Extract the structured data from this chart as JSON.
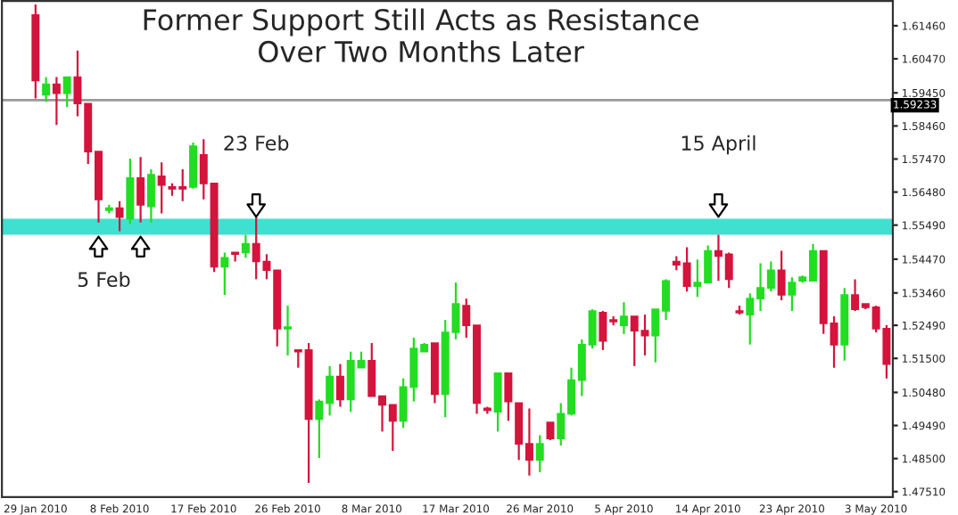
{
  "chart_data": {
    "type": "candlestick",
    "title": "Former Support Still Acts as Resistance\nOver Two Months Later",
    "categories": [
      "29 Jan 2010",
      null,
      null,
      null,
      null,
      null,
      null,
      null,
      "8 Feb 2010",
      null,
      null,
      null,
      null,
      null,
      null,
      null,
      "17 Feb 2010",
      null,
      null,
      null,
      null,
      null,
      null,
      null,
      "26 Feb 2010",
      null,
      null,
      null,
      null,
      null,
      null,
      null,
      "8 Mar 2010",
      null,
      null,
      null,
      null,
      null,
      null,
      null,
      "17 Mar 2010",
      null,
      null,
      null,
      null,
      null,
      null,
      null,
      "26 Mar 2010",
      null,
      null,
      null,
      null,
      null,
      null,
      null,
      "5 Apr 2010",
      null,
      null,
      null,
      null,
      null,
      null,
      null,
      "14 Apr 2010",
      null,
      null,
      null,
      null,
      null,
      null,
      null,
      "23 Apr 2010",
      null,
      null,
      null,
      null,
      null,
      null,
      null,
      "3 May 2010",
      null
    ],
    "ohlc": [
      [
        1.6178,
        1.621,
        1.5928,
        1.5982
      ],
      [
        1.5939,
        1.5992,
        1.5918,
        1.5971
      ],
      [
        1.5971,
        1.5992,
        1.5849,
        1.5944
      ],
      [
        1.5944,
        1.5992,
        1.5902,
        1.5992
      ],
      [
        1.5992,
        1.6072,
        1.5875,
        1.5913
      ],
      [
        1.5913,
        1.5913,
        1.5732,
        1.5769
      ],
      [
        1.5769,
        1.5769,
        1.5557,
        1.5626
      ],
      [
        1.5594,
        1.561,
        1.5584,
        1.56
      ],
      [
        1.56,
        1.5621,
        1.5531,
        1.5573
      ],
      [
        1.5568,
        1.5748,
        1.5552,
        1.569
      ],
      [
        1.569,
        1.5753,
        1.5557,
        1.561
      ],
      [
        1.5605,
        1.5716,
        1.5557,
        1.57
      ],
      [
        1.5695,
        1.5737,
        1.5584,
        1.5669
      ],
      [
        1.5663,
        1.5674,
        1.5637,
        1.5658
      ],
      [
        1.5663,
        1.5716,
        1.5621,
        1.5658
      ],
      [
        1.5663,
        1.5796,
        1.5658,
        1.5785
      ],
      [
        1.5759,
        1.5806,
        1.5626,
        1.5674
      ],
      [
        1.5674,
        1.5674,
        1.5409,
        1.5424
      ],
      [
        1.5424,
        1.5467,
        1.534,
        1.5451
      ],
      [
        1.5467,
        1.5467,
        1.544,
        1.5462
      ],
      [
        1.5467,
        1.552,
        1.5451,
        1.5493
      ],
      [
        1.5493,
        1.5573,
        1.5387,
        1.544
      ],
      [
        1.544,
        1.5462,
        1.5387,
        1.5414
      ],
      [
        1.5414,
        1.5414,
        1.5186,
        1.5239
      ],
      [
        1.5239,
        1.5308,
        1.5159,
        1.5244
      ],
      [
        1.5175,
        1.5175,
        1.5122,
        1.517
      ],
      [
        1.5175,
        1.5196,
        1.4777,
        1.4968
      ],
      [
        1.4968,
        1.5027,
        1.4852,
        1.5021
      ],
      [
        1.5016,
        1.5127,
        1.4979,
        1.5096
      ],
      [
        1.5096,
        1.5133,
        1.5005,
        1.5027
      ],
      [
        1.5027,
        1.517,
        1.499,
        1.5143
      ],
      [
        1.5122,
        1.517,
        1.5122,
        1.5143
      ],
      [
        1.5143,
        1.5196,
        1.5037,
        1.5037
      ],
      [
        1.5037,
        1.5037,
        1.4931,
        1.5011
      ],
      [
        1.5011,
        1.5011,
        1.4873,
        1.4963
      ],
      [
        1.4963,
        1.509,
        1.4942,
        1.5064
      ],
      [
        1.5064,
        1.5212,
        1.5021,
        1.518
      ],
      [
        1.517,
        1.5196,
        1.517,
        1.5191
      ],
      [
        1.5196,
        1.5196,
        1.5016,
        1.5043
      ],
      [
        1.5043,
        1.5265,
        1.4974,
        1.5228
      ],
      [
        1.5228,
        1.5377,
        1.5207,
        1.5313
      ],
      [
        1.5308,
        1.5329,
        1.5212,
        1.5249
      ],
      [
        1.5249,
        1.5249,
        1.4984,
        1.5016
      ],
      [
        1.5,
        1.5005,
        1.4984,
        1.4995
      ],
      [
        1.499,
        1.5106,
        1.4931,
        1.5106
      ],
      [
        1.5106,
        1.5106,
        1.4963,
        1.5021
      ],
      [
        1.5016,
        1.5016,
        1.4846,
        1.4894
      ],
      [
        1.4894,
        1.5,
        1.4799,
        1.4846
      ],
      [
        1.4846,
        1.492,
        1.4809,
        1.4894
      ],
      [
        1.4958,
        1.4958,
        1.4905,
        1.491
      ],
      [
        1.491,
        1.5016,
        1.4889,
        1.4984
      ],
      [
        1.4984,
        1.5122,
        1.4979,
        1.5085
      ],
      [
        1.5085,
        1.5207,
        1.5037,
        1.5191
      ],
      [
        1.5191,
        1.5297,
        1.518,
        1.5292
      ],
      [
        1.5287,
        1.5292,
        1.5175,
        1.5202
      ],
      [
        1.5265,
        1.5276,
        1.5249,
        1.526
      ],
      [
        1.5249,
        1.5318,
        1.5223,
        1.5276
      ],
      [
        1.5276,
        1.5276,
        1.5127,
        1.5233
      ],
      [
        1.5233,
        1.5281,
        1.5159,
        1.5218
      ],
      [
        1.5218,
        1.5297,
        1.5138,
        1.5297
      ],
      [
        1.5292,
        1.5387,
        1.5265,
        1.5382
      ],
      [
        1.544,
        1.5456,
        1.5414,
        1.543
      ],
      [
        1.5435,
        1.5483,
        1.535,
        1.5366
      ],
      [
        1.5366,
        1.5446,
        1.5334,
        1.5377
      ],
      [
        1.5377,
        1.5488,
        1.5377,
        1.5472
      ],
      [
        1.5472,
        1.552,
        1.5382,
        1.5456
      ],
      [
        1.5462,
        1.5467,
        1.5361,
        1.5387
      ],
      [
        1.5292,
        1.5308,
        1.5281,
        1.5287
      ],
      [
        1.5281,
        1.5345,
        1.5191,
        1.5329
      ],
      [
        1.5329,
        1.5435,
        1.5292,
        1.5361
      ],
      [
        1.5361,
        1.544,
        1.535,
        1.5414
      ],
      [
        1.5414,
        1.5472,
        1.5324,
        1.534
      ],
      [
        1.534,
        1.5393,
        1.5292,
        1.5377
      ],
      [
        1.5382,
        1.5398,
        1.5377,
        1.5393
      ],
      [
        1.5382,
        1.5493,
        1.5382,
        1.5472
      ],
      [
        1.5472,
        1.5472,
        1.5223,
        1.5255
      ],
      [
        1.5255,
        1.5276,
        1.5122,
        1.5191
      ],
      [
        1.5191,
        1.5361,
        1.5143,
        1.534
      ],
      [
        1.534,
        1.5387,
        1.5292,
        1.5297
      ],
      [
        1.5313,
        1.5313,
        1.5297,
        1.5303
      ],
      [
        1.5303,
        1.5308,
        1.5228,
        1.5239
      ],
      [
        1.5239,
        1.5249,
        1.509,
        1.5133
      ]
    ],
    "colors": [
      "#d4143c",
      "#22dd22",
      "#d4143c",
      "#22dd22",
      "#d4143c",
      "#d4143c",
      "#d4143c",
      "#22dd22",
      "#d4143c",
      "#22dd22",
      "#d4143c",
      "#22dd22",
      "#d4143c",
      "#d4143c",
      "#d4143c",
      "#22dd22",
      "#d4143c",
      "#d4143c",
      "#22dd22",
      "#d4143c",
      "#22dd22",
      "#d4143c",
      "#d4143c",
      "#d4143c",
      "#22dd22",
      "#d4143c",
      "#d4143c",
      "#22dd22",
      "#22dd22",
      "#d4143c",
      "#22dd22",
      "#22dd22",
      "#d4143c",
      "#d4143c",
      "#d4143c",
      "#22dd22",
      "#22dd22",
      "#22dd22",
      "#d4143c",
      "#22dd22",
      "#22dd22",
      "#d4143c",
      "#d4143c",
      "#d4143c",
      "#22dd22",
      "#d4143c",
      "#d4143c",
      "#d4143c",
      "#22dd22",
      "#d4143c",
      "#22dd22",
      "#22dd22",
      "#22dd22",
      "#22dd22",
      "#d4143c",
      "#d4143c",
      "#22dd22",
      "#d4143c",
      "#d4143c",
      "#22dd22",
      "#22dd22",
      "#d4143c",
      "#d4143c",
      "#22dd22",
      "#22dd22",
      "#d4143c",
      "#d4143c",
      "#d4143c",
      "#22dd22",
      "#22dd22",
      "#22dd22",
      "#d4143c",
      "#22dd22",
      "#22dd22",
      "#22dd22",
      "#d4143c",
      "#d4143c",
      "#22dd22",
      "#d4143c",
      "#d4143c",
      "#d4143c",
      "#d4143c"
    ],
    "ylim": [
      1.4735,
      1.622
    ],
    "yticks": [
      {
        "value": 1.6146,
        "label": "1.61460"
      },
      {
        "value": 1.6047,
        "label": "1.60470"
      },
      {
        "value": 1.5945,
        "label": "1.59450"
      },
      {
        "value": 1.5846,
        "label": "1.58460"
      },
      {
        "value": 1.5747,
        "label": "1.57470"
      },
      {
        "value": 1.5648,
        "label": "1.56480"
      },
      {
        "value": 1.5549,
        "label": "1.55490"
      },
      {
        "value": 1.5447,
        "label": "1.54470"
      },
      {
        "value": 1.5346,
        "label": "1.53460"
      },
      {
        "value": 1.5249,
        "label": "1.52490"
      },
      {
        "value": 1.515,
        "label": "1.51500"
      },
      {
        "value": 1.5048,
        "label": "1.50480"
      },
      {
        "value": 1.4949,
        "label": "1.49490"
      },
      {
        "value": 1.485,
        "label": "1.48500"
      },
      {
        "value": 1.4751,
        "label": "1.47510"
      }
    ],
    "ref_lines": [
      {
        "axis": "y",
        "value": 1.59233,
        "label": "1.59233",
        "color": "#999999"
      }
    ],
    "bands": [
      {
        "axis": "y",
        "from": 1.552,
        "to": 1.5568,
        "color": "#40e0d0"
      }
    ],
    "annotations": [
      "23 Feb",
      "15 April",
      "5 Feb"
    ],
    "grid": false,
    "legend": false
  }
}
